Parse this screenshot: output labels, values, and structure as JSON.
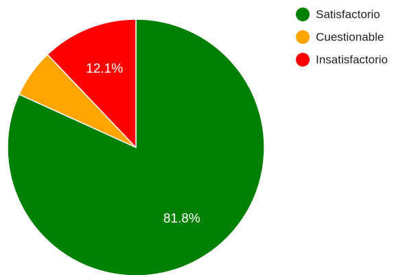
{
  "chart_data": {
    "type": "pie",
    "title": "",
    "slices": [
      {
        "label": "Satisfactorio",
        "value": 81.8,
        "color": "#008000",
        "data_label": "81.8%"
      },
      {
        "label": "Cuestionable",
        "value": 6.1,
        "color": "#FFA500",
        "data_label": ""
      },
      {
        "label": "Insatisfactorio",
        "value": 12.1,
        "color": "#FF0000",
        "data_label": "12.1%"
      }
    ],
    "start_angle_deg": 0,
    "direction": "clockwise",
    "legend_position": "top-right",
    "slice_border_color": "#ffffff",
    "label_color": "#ffffff",
    "legend_text_color": "#222222"
  }
}
